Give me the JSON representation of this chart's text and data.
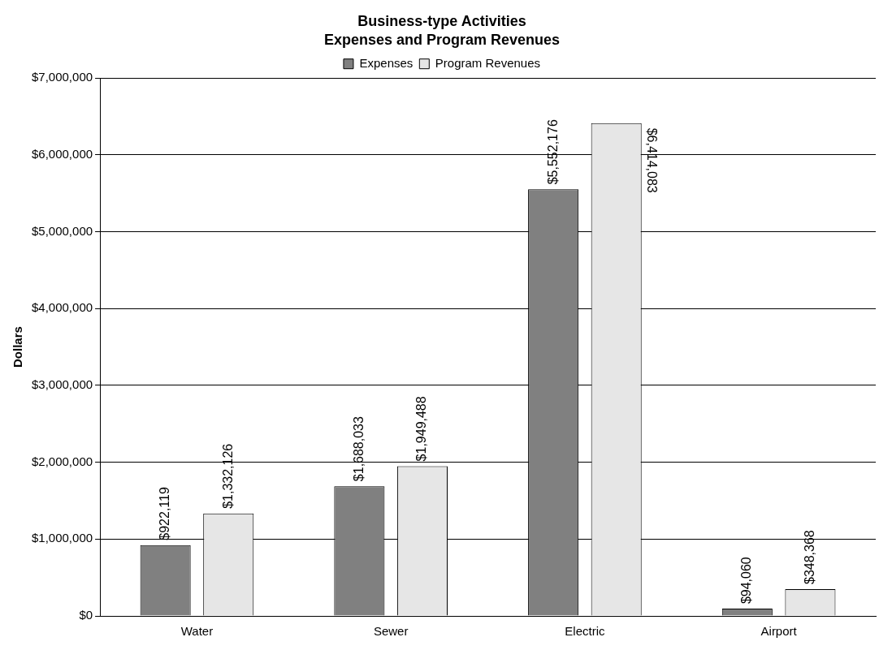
{
  "chart_data": {
    "type": "bar",
    "title": "Business-type Activities",
    "subtitle": "Expenses and Program Revenues",
    "ylabel": "Dollars",
    "categories": [
      "Water",
      "Sewer",
      "Electric",
      "Airport"
    ],
    "series": [
      {
        "name": "Expenses",
        "color": "#808080",
        "values": [
          922119,
          1688033,
          5552176,
          94060
        ],
        "value_labels": [
          "$922,119",
          "$1,688,033",
          "$5,552,176",
          "$94,060"
        ]
      },
      {
        "name": "Program Revenues",
        "color": "#e6e6e6",
        "values": [
          1332126,
          1949488,
          6414083,
          348368
        ],
        "value_labels": [
          "$1,332,126",
          "$1,949,488",
          "$6,414,083",
          "$348,368"
        ]
      }
    ],
    "ylim": [
      0,
      7000000
    ],
    "yticks": [
      {
        "value": 0,
        "label": "$0"
      },
      {
        "value": 1000000,
        "label": "$1,000,000"
      },
      {
        "value": 2000000,
        "label": "$2,000,000"
      },
      {
        "value": 3000000,
        "label": "$3,000,000"
      },
      {
        "value": 4000000,
        "label": "$4,000,000"
      },
      {
        "value": 5000000,
        "label": "$5,000,000"
      },
      {
        "value": 6000000,
        "label": "$6,000,000"
      },
      {
        "value": 7000000,
        "label": "$7,000,000"
      }
    ],
    "grid": "y",
    "legend": "top"
  }
}
